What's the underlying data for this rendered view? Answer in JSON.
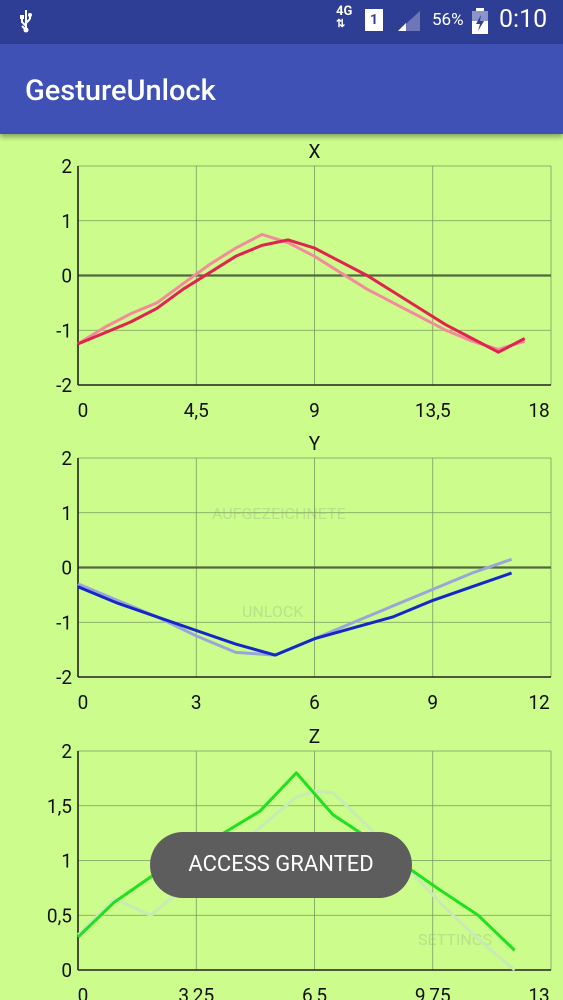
{
  "status_bar": {
    "network_label": "4G",
    "sim_label": "1",
    "battery_percent": "56%",
    "time": "0:10",
    "icons": [
      "usb-icon",
      "data-arrows-icon",
      "sim-icon",
      "signal-icon",
      "battery-charging-icon"
    ]
  },
  "app_bar": {
    "title": "GestureUnlock"
  },
  "background_buttons": {
    "button1": "AUFGEZEICHNETE",
    "button2": "UNLOCK",
    "button3": "SETTINGS"
  },
  "toast": {
    "text": "ACCESS GRANTED"
  },
  "colors": {
    "status_bar": "#2f3e95",
    "app_bar": "#3f51b5",
    "background": "#ccfc8c",
    "toast": "#5d5d5d"
  },
  "chart_data": [
    {
      "type": "line",
      "title": "X",
      "xlim": [
        0,
        18
      ],
      "ylim": [
        -2,
        2
      ],
      "xticks": [
        "0",
        "4,5",
        "9",
        "13,5",
        "18"
      ],
      "yticks": [
        "2",
        "1",
        "0",
        "-1",
        "-2"
      ],
      "series": [
        {
          "color": "#e0234f",
          "x": [
            0,
            1,
            2,
            3,
            4,
            5,
            6,
            7,
            8,
            9,
            10,
            11,
            12,
            13,
            14,
            15,
            16,
            17
          ],
          "y": [
            -1.25,
            -1.05,
            -0.85,
            -0.6,
            -0.25,
            0.05,
            0.35,
            0.55,
            0.65,
            0.5,
            0.25,
            0.0,
            -0.3,
            -0.6,
            -0.9,
            -1.15,
            -1.4,
            -1.15
          ]
        },
        {
          "color": "#f48b9a",
          "x": [
            0,
            1,
            2,
            3,
            4,
            5,
            6,
            7,
            8,
            9,
            10,
            11,
            12,
            13,
            14,
            15,
            16,
            17
          ],
          "y": [
            -1.25,
            -0.95,
            -0.7,
            -0.5,
            -0.15,
            0.2,
            0.5,
            0.75,
            0.6,
            0.35,
            0.05,
            -0.25,
            -0.5,
            -0.75,
            -1.0,
            -1.2,
            -1.35,
            -1.2
          ]
        }
      ]
    },
    {
      "type": "line",
      "title": "Y",
      "xlim": [
        0,
        12
      ],
      "ylim": [
        -2,
        2
      ],
      "xticks": [
        "0",
        "3",
        "6",
        "9",
        "12"
      ],
      "yticks": [
        "2",
        "1",
        "0",
        "-1",
        "-2"
      ],
      "series": [
        {
          "color": "#1428c8",
          "x": [
            0,
            1,
            2,
            3,
            4,
            5,
            6,
            7,
            8,
            9,
            10,
            11
          ],
          "y": [
            -0.35,
            -0.65,
            -0.9,
            -1.15,
            -1.4,
            -1.6,
            -1.3,
            -1.1,
            -0.9,
            -0.6,
            -0.35,
            -0.1
          ]
        },
        {
          "color": "#9aa6d8",
          "x": [
            0,
            1,
            2,
            3,
            4,
            5,
            6,
            7,
            8,
            9,
            10,
            11
          ],
          "y": [
            -0.3,
            -0.6,
            -0.9,
            -1.25,
            -1.55,
            -1.6,
            -1.3,
            -1.0,
            -0.7,
            -0.4,
            -0.1,
            0.15
          ]
        }
      ]
    },
    {
      "type": "line",
      "title": "Z",
      "xlim": [
        0,
        13
      ],
      "ylim": [
        0,
        2
      ],
      "xticks": [
        "0",
        "3,25",
        "6,5",
        "9,75",
        "13"
      ],
      "yticks": [
        "2",
        "1,5",
        "1",
        "0,5",
        "0"
      ],
      "series": [
        {
          "color": "#20e020",
          "x": [
            0,
            1,
            2,
            3,
            4,
            5,
            6,
            7,
            8,
            9,
            10,
            11,
            12
          ],
          "y": [
            0.3,
            0.62,
            0.85,
            1.05,
            1.25,
            1.45,
            1.8,
            1.42,
            1.2,
            0.95,
            0.72,
            0.5,
            0.18
          ]
        },
        {
          "color": "#c8eab4",
          "x": [
            0,
            1,
            2,
            3,
            4,
            5,
            6,
            6.5,
            7,
            8,
            9,
            10,
            11,
            12
          ],
          "y": [
            0.32,
            0.65,
            0.5,
            0.78,
            1.0,
            1.3,
            1.58,
            1.63,
            1.62,
            1.3,
            0.95,
            0.6,
            0.28,
            0.0
          ]
        }
      ]
    }
  ]
}
